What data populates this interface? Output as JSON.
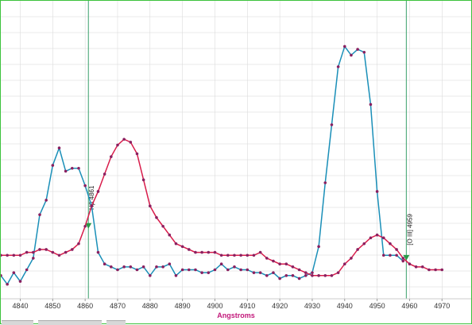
{
  "chart_data": {
    "type": "line",
    "xlabel": "Angstroms",
    "ylabel": "",
    "xlim": [
      4834,
      4979
    ],
    "ylim": [
      0,
      100
    ],
    "x_ticks": [
      4840,
      4850,
      4860,
      4870,
      4880,
      4890,
      4900,
      4910,
      4920,
      4930,
      4940,
      4950,
      4960,
      4970
    ],
    "grid": true,
    "series": [
      {
        "color": "#1a8fb8",
        "marker_color": "#8a2060",
        "x": [
          4834,
          4836,
          4838,
          4840,
          4842,
          4844,
          4846,
          4848,
          4850,
          4852,
          4854,
          4856,
          4858,
          4860,
          4862,
          4864,
          4866,
          4868,
          4870,
          4872,
          4874,
          4876,
          4878,
          4880,
          4882,
          4884,
          4886,
          4888,
          4890,
          4892,
          4894,
          4896,
          4898,
          4900,
          4902,
          4904,
          4906,
          4908,
          4910,
          4912,
          4914,
          4916,
          4918,
          4920,
          4922,
          4924,
          4926,
          4928,
          4930,
          4932,
          4934,
          4936,
          4938,
          4940,
          4942,
          4944,
          4946,
          4948,
          4950,
          4952,
          4954,
          4956,
          4958,
          4960,
          4962,
          4964,
          4966,
          4968,
          4970,
          4972,
          4974,
          4976,
          4978
        ],
        "values": [
          8,
          5,
          9,
          6,
          10,
          14,
          29,
          34,
          46,
          52,
          44,
          45,
          45,
          39,
          32,
          16,
          12,
          11,
          10,
          11,
          11,
          10,
          11,
          8,
          11,
          11,
          12,
          8,
          10,
          10,
          10,
          9,
          9,
          10,
          12,
          10,
          11,
          10,
          10,
          9,
          9,
          8,
          9,
          7,
          8,
          8,
          7,
          8,
          9,
          18,
          40,
          60,
          80,
          87,
          84,
          86,
          85,
          67,
          37,
          15,
          15,
          15,
          13,
          null,
          null,
          null,
          null,
          null,
          null,
          null,
          null,
          null,
          null
        ]
      },
      {
        "color": "#d81b4a",
        "marker_color": "#8a2060",
        "x": [
          4834,
          4836,
          4838,
          4840,
          4842,
          4844,
          4846,
          4848,
          4850,
          4852,
          4854,
          4856,
          4858,
          4860,
          4862,
          4864,
          4866,
          4868,
          4870,
          4872,
          4874,
          4876,
          4878,
          4880,
          4882,
          4884,
          4886,
          4888,
          4890,
          4892,
          4894,
          4896,
          4898,
          4900,
          4902,
          4904,
          4906,
          4908,
          4910,
          4912,
          4914,
          4916,
          4918,
          4920,
          4922,
          4924,
          4926,
          4928,
          4930,
          4932,
          4934,
          4936,
          4938,
          4940,
          4942,
          4944,
          4946,
          4948,
          4950,
          4952,
          4954,
          4956,
          4958,
          4960,
          4962,
          4964,
          4966,
          4968,
          4970,
          4972,
          4974,
          4976,
          4978
        ],
        "values": [
          15,
          15,
          15,
          15,
          16,
          16,
          17,
          17,
          16,
          15,
          16,
          17,
          19,
          25,
          32,
          37,
          43,
          49,
          53,
          55,
          54,
          50,
          41,
          32,
          28,
          25,
          22,
          19,
          18,
          17,
          16,
          16,
          16,
          16,
          15,
          15,
          15,
          15,
          15,
          15,
          16,
          14,
          13,
          12,
          12,
          11,
          10,
          9,
          8,
          8,
          8,
          8,
          9,
          12,
          14,
          17,
          19,
          21,
          22,
          21,
          19,
          17,
          14,
          12,
          11,
          11,
          10,
          10,
          10,
          null,
          null,
          null,
          null
        ]
      }
    ],
    "markers": [
      {
        "label": "Hβ 4861",
        "x": 4861
      },
      {
        "label": "[O III] 4959",
        "x": 4959
      }
    ]
  }
}
